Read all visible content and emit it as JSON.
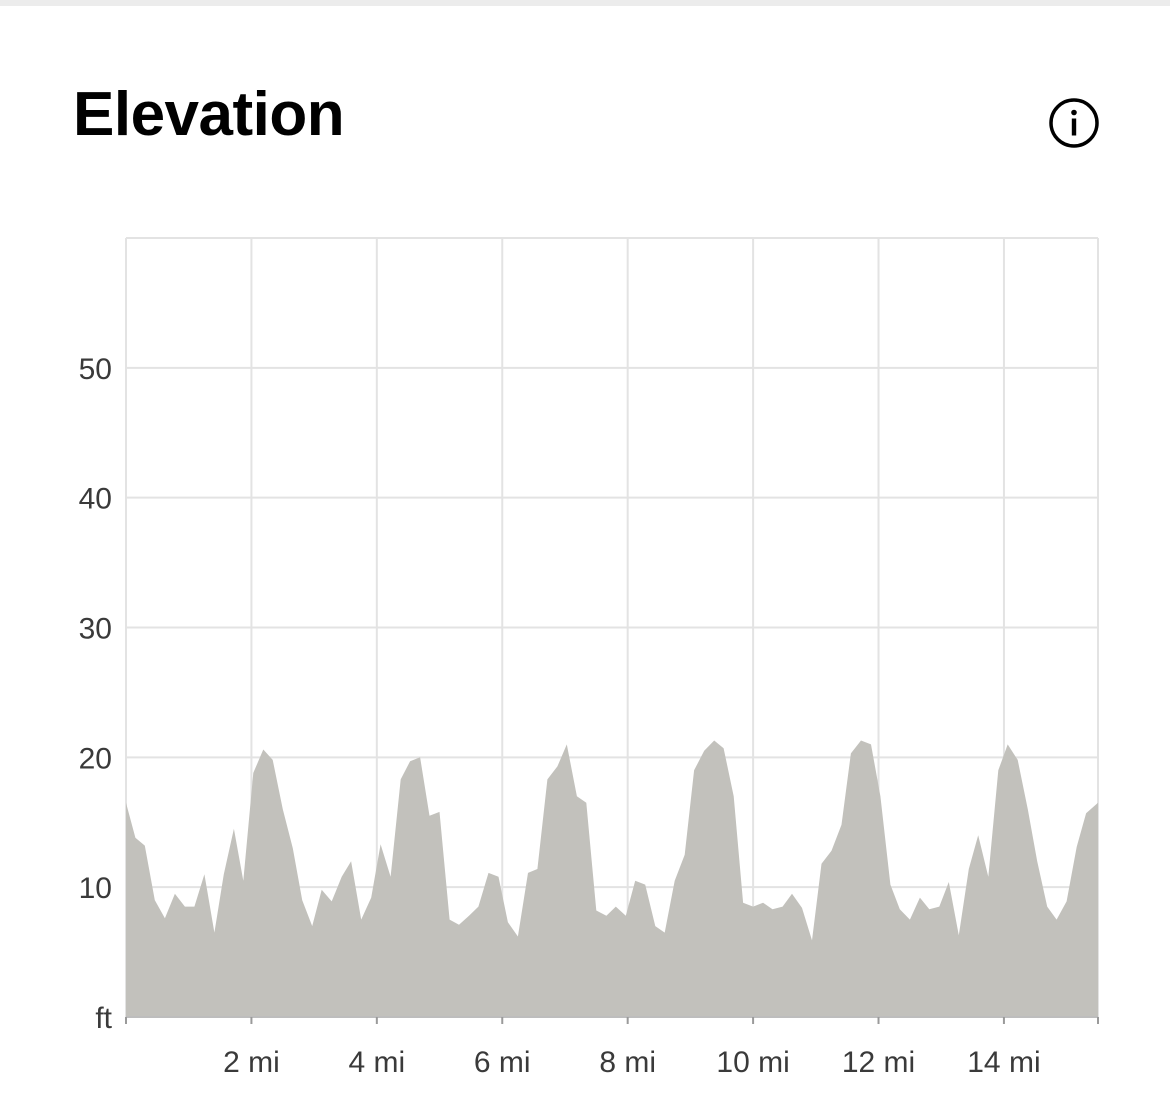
{
  "header": {
    "title": "Elevation",
    "info_icon": "info-circle-icon"
  },
  "colors": {
    "area_fill": "#c2c1bc",
    "grid": "#e3e3e3",
    "text": "#3a3a3a"
  },
  "chart_data": {
    "type": "area",
    "title": "Elevation",
    "xlabel": "",
    "ylabel": "ft",
    "xlim": [
      0,
      15.5
    ],
    "ylim": [
      0,
      60
    ],
    "grid": true,
    "x_ticks": [
      2,
      4,
      6,
      8,
      10,
      12,
      14
    ],
    "x_tick_labels": [
      "2 mi",
      "4 mi",
      "6 mi",
      "8 mi",
      "10 mi",
      "12 mi",
      "14 mi"
    ],
    "y_ticks": [
      0,
      10,
      20,
      30,
      40,
      50
    ],
    "y_tick_labels": [
      "ft",
      "10",
      "20",
      "30",
      "40",
      "50"
    ],
    "series": [
      {
        "x": [
          0,
          0.15,
          0.3,
          0.46,
          0.62,
          0.78,
          0.94,
          1.09,
          1.25,
          1.41,
          1.56,
          1.72,
          1.87,
          2.03,
          2.19,
          2.34,
          2.5,
          2.66,
          2.81,
          2.97,
          3.12,
          3.28,
          3.44,
          3.59,
          3.75,
          3.91,
          4.06,
          4.22,
          4.38,
          4.53,
          4.69,
          4.84,
          5.0,
          5.16,
          5.31,
          5.47,
          5.62,
          5.78,
          5.94,
          6.09,
          6.25,
          6.41,
          6.56,
          6.72,
          6.88,
          7.03,
          7.19,
          7.34,
          7.5,
          7.66,
          7.81,
          7.97,
          8.12,
          8.28,
          8.44,
          8.59,
          8.75,
          8.91,
          9.06,
          9.22,
          9.38,
          9.53,
          9.69,
          9.84,
          10.0,
          10.16,
          10.31,
          10.47,
          10.62,
          10.78,
          10.94,
          11.09,
          11.25,
          11.41,
          11.56,
          11.72,
          11.88,
          12.03,
          12.19,
          12.34,
          12.5,
          12.66,
          12.81,
          12.97,
          13.12,
          13.28,
          13.44,
          13.59,
          13.75,
          13.91,
          14.06,
          14.22,
          14.38,
          14.53,
          14.69,
          14.84,
          15.0,
          15.16,
          15.31,
          15.5
        ],
        "values": [
          16.5,
          13.8,
          13.2,
          9.0,
          7.6,
          9.5,
          8.5,
          8.5,
          11.0,
          6.5,
          11.0,
          14.5,
          10.5,
          18.8,
          20.6,
          19.8,
          16.0,
          13.0,
          9.0,
          7.0,
          9.8,
          8.9,
          10.8,
          12.0,
          7.5,
          9.2,
          13.3,
          10.8,
          18.3,
          19.7,
          20.0,
          15.5,
          15.8,
          7.5,
          7.1,
          7.8,
          8.5,
          11.1,
          10.8,
          7.3,
          6.2,
          11.1,
          11.4,
          18.3,
          19.3,
          21.0,
          17.0,
          16.5,
          8.2,
          7.8,
          8.5,
          7.8,
          10.5,
          10.2,
          7.0,
          6.5,
          10.5,
          12.5,
          19.0,
          20.5,
          21.3,
          20.7,
          17.0,
          8.8,
          8.5,
          8.8,
          8.3,
          8.5,
          9.5,
          8.4,
          5.9,
          11.8,
          12.8,
          14.8,
          20.3,
          21.3,
          21.0,
          17.0,
          10.2,
          8.3,
          7.5,
          9.2,
          8.3,
          8.5,
          10.4,
          6.3,
          11.4,
          14.0,
          10.8,
          19.0,
          21.0,
          19.8,
          16.0,
          12.0,
          8.5,
          7.5,
          8.9,
          13.1,
          15.7,
          16.5
        ]
      }
    ]
  }
}
